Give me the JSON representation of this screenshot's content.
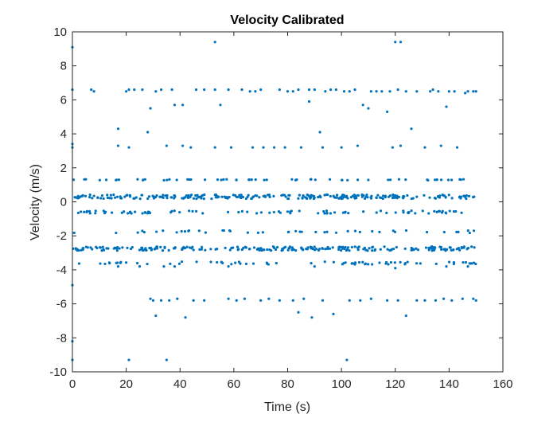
{
  "chart_data": {
    "type": "scatter",
    "title": "Velocity Calibrated",
    "xlabel": "Time (s)",
    "ylabel": "Velocity (m/s)",
    "xlim": [
      0,
      160
    ],
    "ylim": [
      -10,
      10
    ],
    "xticks": [
      0,
      20,
      40,
      60,
      80,
      100,
      120,
      140,
      160
    ],
    "yticks": [
      -10,
      -8,
      -6,
      -4,
      -2,
      0,
      2,
      4,
      6,
      8,
      10
    ],
    "x_tick_labels": [
      "0",
      "20",
      "40",
      "60",
      "80",
      "100",
      "120",
      "140",
      "160"
    ],
    "y_tick_labels": [
      "-10",
      "-8",
      "-6",
      "-4",
      "-2",
      "0",
      "2",
      "4",
      "6",
      "8",
      "10"
    ],
    "grid": false,
    "legend": "none",
    "marker_color": "#0072BD",
    "series": [
      {
        "dense_bands": [
          {
            "y": 0.3,
            "x_range": [
              0,
              150
            ],
            "count": 260,
            "spread": 0.12
          },
          {
            "y": -2.75,
            "x_range": [
              0,
              150
            ],
            "count": 240,
            "spread": 0.12
          },
          {
            "y": 1.3,
            "x_range": [
              0,
              150
            ],
            "count": 60,
            "spread": 0.03
          },
          {
            "y": -0.6,
            "x_range": [
              0,
              150
            ],
            "count": 90,
            "spread": 0.08
          },
          {
            "y": -3.6,
            "x_range": [
              0,
              150
            ],
            "count": 70,
            "spread": 0.08
          },
          {
            "y": -1.75,
            "x_range": [
              0,
              150
            ],
            "count": 45,
            "spread": 0.08
          }
        ],
        "points": [
          [
            0,
            9.1
          ],
          [
            0,
            6.6
          ],
          [
            0,
            3.4
          ],
          [
            0,
            3.2
          ],
          [
            0,
            -4.9
          ],
          [
            0,
            -8.2
          ],
          [
            0,
            -9.3
          ],
          [
            7,
            6.6
          ],
          [
            8,
            6.5
          ],
          [
            17,
            4.3
          ],
          [
            17,
            3.3
          ],
          [
            21,
            3.2
          ],
          [
            20,
            6.5
          ],
          [
            21,
            6.6
          ],
          [
            23,
            6.6
          ],
          [
            26,
            6.6
          ],
          [
            28,
            4.1
          ],
          [
            29,
            5.5
          ],
          [
            31,
            6.5
          ],
          [
            33,
            6.6
          ],
          [
            35,
            3.3
          ],
          [
            37,
            6.6
          ],
          [
            38,
            5.7
          ],
          [
            41,
            5.7
          ],
          [
            41,
            3.3
          ],
          [
            44,
            3.2
          ],
          [
            46,
            6.6
          ],
          [
            49,
            6.6
          ],
          [
            53,
            6.6
          ],
          [
            53,
            3.2
          ],
          [
            55,
            5.7
          ],
          [
            58,
            6.6
          ],
          [
            59,
            3.2
          ],
          [
            63,
            6.6
          ],
          [
            66,
            6.5
          ],
          [
            67,
            3.2
          ],
          [
            68,
            6.5
          ],
          [
            70,
            6.6
          ],
          [
            71,
            3.2
          ],
          [
            75,
            3.2
          ],
          [
            77,
            6.6
          ],
          [
            79,
            3.2
          ],
          [
            80,
            6.5
          ],
          [
            82,
            6.5
          ],
          [
            84,
            6.6
          ],
          [
            85,
            3.2
          ],
          [
            88,
            6.6
          ],
          [
            88,
            5.9
          ],
          [
            90,
            6.6
          ],
          [
            92,
            4.1
          ],
          [
            93,
            3.2
          ],
          [
            94,
            6.5
          ],
          [
            96,
            6.6
          ],
          [
            98,
            6.6
          ],
          [
            100,
            3.2
          ],
          [
            101,
            6.5
          ],
          [
            103,
            6.5
          ],
          [
            105,
            6.6
          ],
          [
            106,
            3.3
          ],
          [
            108,
            5.7
          ],
          [
            110,
            5.5
          ],
          [
            111,
            6.5
          ],
          [
            113,
            6.5
          ],
          [
            115,
            6.5
          ],
          [
            117,
            5.3
          ],
          [
            118,
            6.5
          ],
          [
            119,
            3.2
          ],
          [
            121,
            6.6
          ],
          [
            122,
            3.3
          ],
          [
            124,
            6.5
          ],
          [
            126,
            4.3
          ],
          [
            128,
            6.5
          ],
          [
            131,
            3.2
          ],
          [
            133,
            6.5
          ],
          [
            134,
            6.6
          ],
          [
            136,
            6.5
          ],
          [
            137,
            3.3
          ],
          [
            139,
            5.6
          ],
          [
            140,
            6.5
          ],
          [
            142,
            6.5
          ],
          [
            143,
            3.2
          ],
          [
            146,
            6.4
          ],
          [
            147,
            6.5
          ],
          [
            149,
            6.5
          ],
          [
            150,
            6.5
          ],
          [
            53,
            9.4
          ],
          [
            120,
            9.4
          ],
          [
            122,
            9.4
          ],
          [
            29,
            -5.7
          ],
          [
            30,
            -5.8
          ],
          [
            31,
            -6.7
          ],
          [
            33,
            -5.8
          ],
          [
            36,
            -5.8
          ],
          [
            39,
            -5.7
          ],
          [
            42,
            -6.8
          ],
          [
            45,
            -5.8
          ],
          [
            49,
            -5.8
          ],
          [
            58,
            -5.7
          ],
          [
            61,
            -5.8
          ],
          [
            64,
            -5.7
          ],
          [
            70,
            -5.8
          ],
          [
            73,
            -5.7
          ],
          [
            77,
            -5.8
          ],
          [
            82,
            -5.8
          ],
          [
            84,
            -6.5
          ],
          [
            86,
            -5.7
          ],
          [
            89,
            -6.8
          ],
          [
            93,
            -5.8
          ],
          [
            97,
            -6.6
          ],
          [
            103,
            -5.8
          ],
          [
            107,
            -5.8
          ],
          [
            111,
            -5.7
          ],
          [
            117,
            -5.8
          ],
          [
            121,
            -5.8
          ],
          [
            124,
            -6.7
          ],
          [
            128,
            -5.8
          ],
          [
            131,
            -5.8
          ],
          [
            135,
            -5.8
          ],
          [
            138,
            -5.7
          ],
          [
            141,
            -5.8
          ],
          [
            145,
            -5.7
          ],
          [
            149,
            -5.7
          ],
          [
            150,
            -5.8
          ],
          [
            21,
            -9.3
          ],
          [
            35,
            -9.3
          ],
          [
            102,
            -9.3
          ],
          [
            17,
            -3.8
          ],
          [
            25,
            -3.8
          ],
          [
            34,
            -3.8
          ],
          [
            38,
            -3.8
          ],
          [
            58,
            -3.8
          ],
          [
            90,
            -3.8
          ],
          [
            120,
            -3.9
          ],
          [
            139,
            -3.8
          ],
          [
            147,
            -3.8
          ]
        ]
      }
    ]
  }
}
